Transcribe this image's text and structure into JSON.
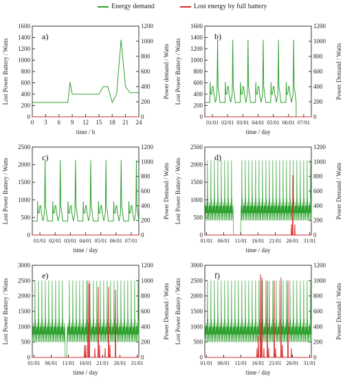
{
  "legend": {
    "items": [
      {
        "label": "Energy demand",
        "color": "#2ca02c"
      },
      {
        "label": "Lost energy by full battery",
        "color": "#d62728"
      }
    ]
  },
  "colors": {
    "demand": "#2ca02c",
    "lost": "#d62728"
  },
  "chart_data": [
    {
      "id": "a",
      "panel_label": "a)",
      "type": "line",
      "xlabel": "time / h",
      "ylabel_left": "Lost Power Battery / Watts",
      "ylabel_right": "Power demand / Watts",
      "x_ticks": [
        "0",
        "3",
        "6",
        "9",
        "12",
        "15",
        "18",
        "21",
        "24"
      ],
      "xlim": [
        0,
        24
      ],
      "ylim_left": [
        0,
        1600
      ],
      "y_ticks_left": [
        0,
        200,
        400,
        600,
        800,
        1000,
        1200,
        1400,
        1600
      ],
      "ylim_right": [
        0,
        1200
      ],
      "y_ticks_right": [
        0,
        200,
        400,
        600,
        800,
        1000,
        1200
      ],
      "series": [
        {
          "key": "demand",
          "axis": "right",
          "x": [
            0,
            1,
            2,
            3,
            4,
            5,
            6,
            7,
            8,
            8.5,
            9,
            10,
            11,
            12,
            13,
            14,
            15,
            16,
            16.5,
            17,
            18,
            19,
            20,
            21,
            22,
            23,
            24
          ],
          "y": [
            190,
            190,
            190,
            190,
            190,
            190,
            190,
            190,
            190,
            460,
            300,
            300,
            300,
            300,
            300,
            300,
            300,
            400,
            400,
            400,
            190,
            300,
            1020,
            400,
            320,
            320,
            320
          ]
        },
        {
          "key": "lost",
          "axis": "left",
          "x": [
            0,
            24
          ],
          "y": [
            0,
            0
          ]
        }
      ]
    },
    {
      "id": "b",
      "panel_label": "b)",
      "type": "line",
      "xlabel": "time / day",
      "ylabel_left": "Lost Power Battery / Watts",
      "ylabel_right": "Power Demand / Watts",
      "x_ticks": [
        "01/01",
        "02/01",
        "03/01",
        "04/01",
        "05/01",
        "06/01",
        "07/01"
      ],
      "xlim": [
        0,
        7
      ],
      "ylim_left": [
        0,
        1600
      ],
      "y_ticks_left": [
        0,
        200,
        400,
        600,
        800,
        1000,
        1200,
        1400,
        1600
      ],
      "ylim_right": [
        0,
        1200
      ],
      "y_ticks_right": [
        0,
        200,
        400,
        600,
        800,
        1000,
        1200
      ],
      "series": [
        {
          "key": "demand",
          "axis": "right",
          "pattern": "daily",
          "days": 6,
          "end_drop": true
        },
        {
          "key": "lost",
          "axis": "left",
          "x": [
            0,
            7
          ],
          "y": [
            0,
            0
          ]
        }
      ]
    },
    {
      "id": "c",
      "panel_label": "c)",
      "type": "line",
      "xlabel": "time / day",
      "ylabel_left": "Lost Power Battery / Watts",
      "ylabel_right": "Power Demand / Watts",
      "x_ticks": [
        "01/01",
        "02/01",
        "03/01",
        "04/01",
        "05/01",
        "06/01",
        "07/01"
      ],
      "xlim": [
        0,
        7
      ],
      "ylim_left": [
        0,
        2500
      ],
      "y_ticks_left": [
        0,
        500,
        1000,
        1500,
        2000,
        2500
      ],
      "ylim_right": [
        0,
        1200
      ],
      "y_ticks_right": [
        0,
        200,
        400,
        600,
        800,
        1000,
        1200
      ],
      "series": [
        {
          "key": "demand",
          "axis": "right",
          "pattern": "daily",
          "days": 7,
          "end_drop": false
        },
        {
          "key": "lost",
          "axis": "left",
          "x": [
            0,
            7
          ],
          "y": [
            0,
            0
          ]
        }
      ]
    },
    {
      "id": "d",
      "panel_label": "d)",
      "type": "line",
      "xlabel": "time / day",
      "ylabel_left": "Lost Power Battery / Watts",
      "ylabel_right": "Power Demand / Watts",
      "x_ticks": [
        "01/01",
        "06/01",
        "11/01",
        "16/01",
        "21/01",
        "26/01",
        "31/01"
      ],
      "xlim": [
        0,
        31
      ],
      "ylim_left": [
        0,
        2500
      ],
      "y_ticks_left": [
        0,
        500,
        1000,
        1500,
        2000,
        2500
      ],
      "ylim_right": [
        0,
        1200
      ],
      "y_ticks_right": [
        0,
        200,
        400,
        600,
        800,
        1000,
        1200
      ],
      "series": [
        {
          "key": "demand",
          "axis": "right",
          "pattern": "dense",
          "days": 31,
          "peak": 1020,
          "gaps": [
            [
              8.4,
              10.4
            ]
          ]
        },
        {
          "key": "lost",
          "axis": "left",
          "pattern": "spikes",
          "spikes": [
            [
              25.2,
              300
            ],
            [
              25.6,
              1700
            ],
            [
              26.2,
              300
            ]
          ]
        }
      ]
    },
    {
      "id": "e",
      "panel_label": "e)",
      "type": "line",
      "xlabel": "time / day",
      "ylabel_left": "Lost Power Battery / Watts",
      "ylabel_right": "Power Demand / Watts",
      "x_ticks": [
        "01/01",
        "06/01",
        "11/01",
        "16/01",
        "21/01",
        "26/01",
        "31/01"
      ],
      "xlim": [
        0,
        31
      ],
      "ylim_left": [
        0,
        3000
      ],
      "y_ticks_left": [
        0,
        500,
        1000,
        1500,
        2000,
        2500,
        3000
      ],
      "ylim_right": [
        0,
        1200
      ],
      "y_ticks_right": [
        0,
        200,
        400,
        600,
        800,
        1000,
        1200
      ],
      "series": [
        {
          "key": "demand",
          "axis": "right",
          "pattern": "dense",
          "days": 31,
          "peak": 1000,
          "gaps": [
            [
              9.6,
              10.0
            ]
          ]
        },
        {
          "key": "lost",
          "axis": "left",
          "pattern": "spikes",
          "spikes": [
            [
              15.2,
              400
            ],
            [
              15.6,
              400
            ],
            [
              16.2,
              2500
            ],
            [
              16.6,
              2400
            ],
            [
              18.2,
              300
            ],
            [
              19.2,
              2300
            ],
            [
              19.6,
              400
            ],
            [
              21.2,
              300
            ],
            [
              22.2,
              2300
            ],
            [
              22.6,
              400
            ],
            [
              24.2,
              2200
            ]
          ]
        }
      ]
    },
    {
      "id": "f",
      "panel_label": "f)",
      "type": "line",
      "xlabel": "time / day",
      "ylabel_left": "Lost Power Battery / Watts",
      "ylabel_right": "Power Demand / Watts",
      "x_ticks": [
        "01/01",
        "06/01",
        "11/01",
        "16/01",
        "21/01",
        "26/01",
        "31/01"
      ],
      "xlim": [
        0,
        31
      ],
      "ylim_left": [
        0,
        3000
      ],
      "y_ticks_left": [
        0,
        500,
        1000,
        1500,
        2000,
        2500,
        3000
      ],
      "ylim_right": [
        0,
        1200
      ],
      "y_ticks_right": [
        0,
        200,
        400,
        600,
        800,
        1000,
        1200
      ],
      "series": [
        {
          "key": "demand",
          "axis": "right",
          "pattern": "dense",
          "days": 31,
          "peak": 1000,
          "gaps": []
        },
        {
          "key": "lost",
          "axis": "left",
          "pattern": "spikes",
          "spikes": [
            [
              15.2,
              300
            ],
            [
              15.6,
              700
            ],
            [
              16.2,
              2700
            ],
            [
              16.6,
              2600
            ],
            [
              17.2,
              300
            ],
            [
              18.2,
              2500
            ],
            [
              18.6,
              300
            ],
            [
              20.2,
              2500
            ],
            [
              20.6,
              300
            ],
            [
              22.2,
              2600
            ],
            [
              22.6,
              400
            ],
            [
              24.2,
              2500
            ],
            [
              25.2,
              300
            ]
          ]
        }
      ]
    }
  ]
}
